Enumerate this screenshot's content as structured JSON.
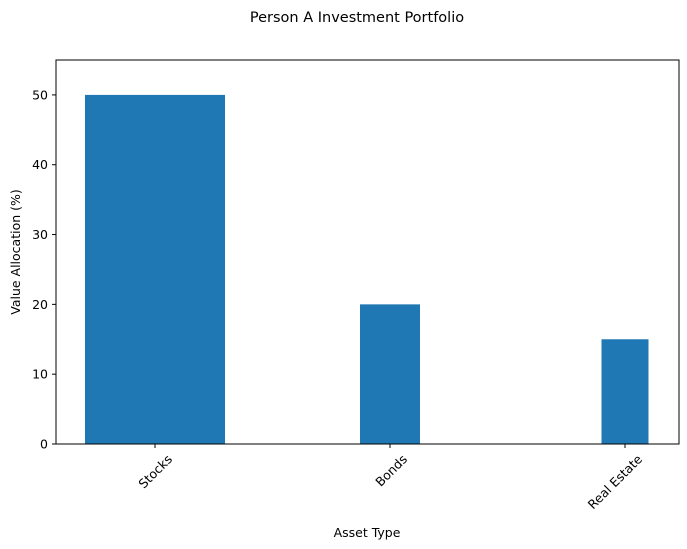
{
  "chart_data": {
    "type": "bar",
    "title": "Person A Investment Portfolio",
    "xlabel": "Asset Type",
    "ylabel": "Value Allocation (%)",
    "categories": [
      "Stocks",
      "Bonds",
      "Real Estate"
    ],
    "values": [
      50,
      20,
      15
    ],
    "ylim": [
      0,
      55
    ],
    "yticks": [
      0,
      10,
      20,
      30,
      40,
      50
    ],
    "bar_color": "#1f77b4",
    "grid": false,
    "legend": "none"
  }
}
